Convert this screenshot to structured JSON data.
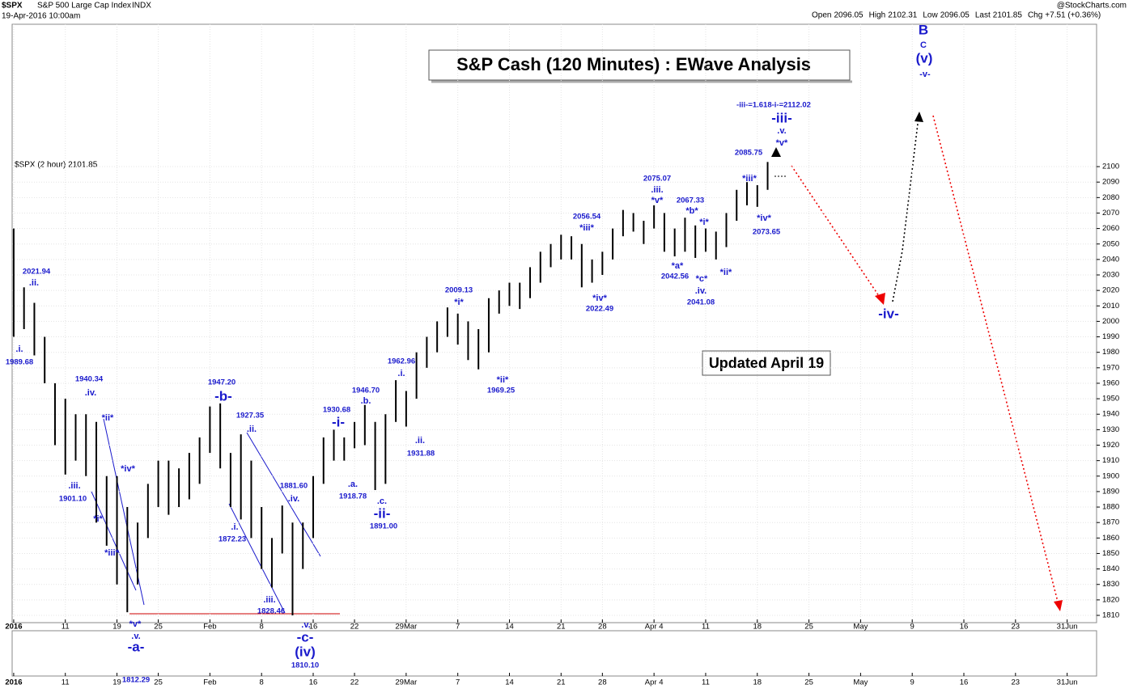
{
  "chart_data": {
    "type": "ohlc",
    "symbol": "$SPX",
    "name": "S&P 500 Large Cap Index",
    "exchange": "INDX",
    "timestamp": "19-Apr-2016 10:00am",
    "quote": [
      {
        "label": "Open",
        "value": 2096.05
      },
      {
        "label": "High",
        "value": 2102.31
      },
      {
        "label": "Low",
        "value": 2096.05
      },
      {
        "label": "Last",
        "value": 2101.85
      },
      {
        "label": "Chg",
        "value": "+7.51 (+0.36%)"
      }
    ],
    "credit": "@StockCharts.com",
    "legend": "$SPX (2 hour) 2101.85",
    "title": "S&P Cash (120 Minutes) : EWave Analysis",
    "note": "Updated April 19",
    "color": "#000000",
    "high": [
      2060,
      2022,
      2012,
      1990,
      1960,
      1950,
      1940,
      1940,
      1935,
      1900,
      1900,
      1880,
      1870,
      1895,
      1910,
      1910,
      1905,
      1915,
      1925,
      1945,
      1947,
      1915,
      1927,
      1910,
      1880,
      1860,
      1881,
      1870,
      1870,
      1900,
      1925,
      1930,
      1925,
      1935,
      1946,
      1935,
      1940,
      1962,
      1955,
      1980,
      1990,
      2000,
      2009,
      2005,
      2000,
      1995,
      2015,
      2020,
      2025,
      2025,
      2035,
      2045,
      2050,
      2056,
      2055,
      2050,
      2040,
      2045,
      2060,
      2072,
      2070,
      2065,
      2075,
      2070,
      2060,
      2067,
      2062,
      2060,
      2058,
      2070,
      2085,
      2090,
      2088,
      2103
    ],
    "low": [
      1990,
      1995,
      1978,
      1960,
      1920,
      1901,
      1910,
      1900,
      1870,
      1855,
      1830,
      1812,
      1830,
      1860,
      1880,
      1875,
      1880,
      1885,
      1895,
      1915,
      1905,
      1880,
      1872,
      1860,
      1840,
      1828,
      1850,
      1810,
      1840,
      1860,
      1895,
      1910,
      1910,
      1918,
      1920,
      1891,
      1895,
      1935,
      1932,
      1950,
      1970,
      1980,
      1990,
      1985,
      1975,
      1969,
      1980,
      2005,
      2010,
      2008,
      2015,
      2025,
      2035,
      2040,
      2040,
      2022,
      2025,
      2030,
      2040,
      2055,
      2058,
      2050,
      2060,
      2045,
      2042,
      2045,
      2041,
      2045,
      2040,
      2048,
      2065,
      2075,
      2074,
      2085
    ],
    "xlim": [
      -0.15,
      104.85
    ],
    "xticks": [
      {
        "value": 0,
        "label": "2016"
      },
      {
        "value": 5,
        "label": "11"
      },
      {
        "value": 10,
        "label": "19"
      },
      {
        "value": 14,
        "label": "25"
      },
      {
        "value": 19,
        "label": "Feb"
      },
      {
        "value": 24,
        "label": "8"
      },
      {
        "value": 29,
        "label": "16"
      },
      {
        "value": 33,
        "label": "22"
      },
      {
        "value": 38,
        "label": "29Mar"
      },
      {
        "value": 43,
        "label": "7"
      },
      {
        "value": 48,
        "label": "14"
      },
      {
        "value": 53,
        "label": "21"
      },
      {
        "value": 57,
        "label": "28"
      },
      {
        "value": 62,
        "label": "Apr 4"
      },
      {
        "value": 67,
        "label": "11"
      },
      {
        "value": 72,
        "label": "18"
      },
      {
        "value": 77,
        "label": "25"
      },
      {
        "value": 82,
        "label": "May"
      },
      {
        "value": 87,
        "label": "9"
      },
      {
        "value": 92,
        "label": "16"
      },
      {
        "value": 97,
        "label": "23"
      },
      {
        "value": 102,
        "label": "31Jun"
      }
    ],
    "ylim": [
      1805.3,
      2192
    ],
    "yticks": [
      1810,
      1820,
      1830,
      1840,
      1850,
      1860,
      1870,
      1880,
      1890,
      1900,
      1910,
      1920,
      1930,
      1940,
      1950,
      1960,
      1970,
      1980,
      1990,
      2000,
      2010,
      2020,
      2030,
      2040,
      2050,
      2060,
      2070,
      2080,
      2090,
      2100
    ],
    "grid": true,
    "annotations": [
      ".i.",
      "1989.68",
      ".ii.",
      "2021.94",
      "1940.34",
      ".iv.",
      ".iii.",
      "1901.10",
      "*ii*",
      "*iv*",
      "*i*",
      "*iii*",
      "*v*",
      ".v.",
      "-a-",
      "1812.29",
      "1947.20",
      "-b-",
      "1927.35",
      ".ii.",
      ".i.",
      "1872.23",
      "1881.60",
      ".iv.",
      ".iii.",
      "1828.46",
      ".v.",
      "-c-",
      "(iv)",
      "1810.10",
      "1930.68",
      "-i-",
      ".a.",
      "1918.78",
      "1946.70",
      ".b.",
      ".c.",
      "-ii-",
      "1891.00",
      "1962.96",
      ".i.",
      ".ii.",
      "1931.88",
      "2009.13",
      "*i*",
      "*ii*",
      "1969.25",
      "2056.54",
      "*iii*",
      "*iv*",
      "2022.49",
      "2075.07",
      ".iii.",
      "*v*",
      "2067.33",
      "*b*",
      "*i*",
      "*a*",
      "2042.56",
      "*c*",
      ".iv.",
      "2041.08",
      "*ii*",
      "2085.75",
      "*iii*",
      "*iv*",
      "2073.65",
      "-iii-=1.618-i-=2112.02",
      "-iii-",
      ".v.",
      "*v*",
      "-iv-",
      "B",
      "C",
      "(v)",
      "-v-"
    ]
  }
}
